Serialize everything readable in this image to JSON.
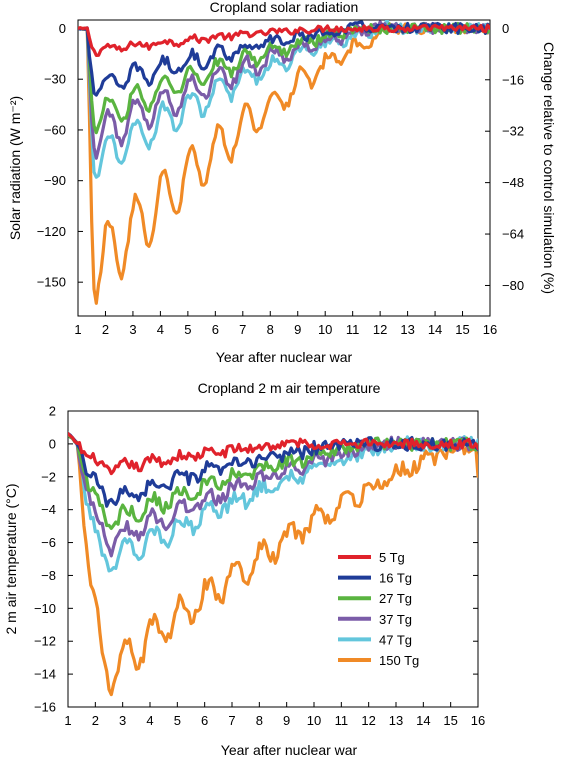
{
  "chart_data": [
    {
      "type": "line",
      "title": "Cropland solar radiation",
      "xlabel": "Year after nuclear war",
      "ylabel": "Solar radiation (W m⁻²)",
      "y2label": "Change relative to control simulation (%)",
      "xlim": [
        1,
        16
      ],
      "ylim": [
        -170,
        5
      ],
      "y2lim": [
        -89.5,
        2.6
      ],
      "xticks": [
        "1",
        "2",
        "3",
        "4",
        "5",
        "6",
        "7",
        "8",
        "9",
        "10",
        "11",
        "12",
        "13",
        "14",
        "15",
        "16"
      ],
      "yticks": [
        0,
        -30,
        -60,
        -90,
        -120,
        -150
      ],
      "yticklabels": [
        "0",
        "−30",
        "−60",
        "−90",
        "−120",
        "−150"
      ],
      "y2ticks": [
        0,
        -16,
        -32,
        -48,
        -64,
        -80
      ],
      "y2ticklabels": [
        "0",
        "−16",
        "−32",
        "−48",
        "−64",
        "−80"
      ],
      "grid": false,
      "series": [
        {
          "name": "5 Tg",
          "color": "#e0222b",
          "drop": -15,
          "amp": 4,
          "recover": 10.5,
          "noise": 2.0
        },
        {
          "name": "16 Tg",
          "color": "#1f3c98",
          "drop": -42,
          "amp": 14,
          "recover": 11.5,
          "noise": 3.0
        },
        {
          "name": "27 Tg",
          "color": "#5ab440",
          "drop": -62,
          "amp": 18,
          "recover": 11.8,
          "noise": 3.0
        },
        {
          "name": "37 Tg",
          "color": "#7b5ca8",
          "drop": -75,
          "amp": 22,
          "recover": 12.2,
          "noise": 3.0
        },
        {
          "name": "47 Tg",
          "color": "#63c6dc",
          "drop": -90,
          "amp": 24,
          "recover": 12.4,
          "noise": 3.0
        },
        {
          "name": "150 Tg",
          "color": "#f08a26",
          "drop": -163,
          "amp": 42,
          "recover": 12.8,
          "noise": 3.0
        }
      ]
    },
    {
      "type": "line",
      "title": "Cropland 2 m air temperature",
      "xlabel": "Year after nuclear war",
      "ylabel": "2 m air temperature (°C)",
      "xlim": [
        1,
        16
      ],
      "ylim": [
        -16,
        2
      ],
      "xticks": [
        "1",
        "2",
        "3",
        "4",
        "5",
        "6",
        "7",
        "8",
        "9",
        "10",
        "11",
        "12",
        "13",
        "14",
        "15",
        "16"
      ],
      "yticks": [
        2,
        0,
        -2,
        -4,
        -6,
        -8,
        -10,
        -12,
        -14,
        -16
      ],
      "yticklabels": [
        "2",
        "0",
        "−2",
        "−4",
        "−6",
        "−8",
        "−10",
        "−12",
        "−14",
        "−16"
      ],
      "grid": false,
      "legend_position": "lower-center",
      "series": [
        {
          "name": "5 Tg",
          "color": "#e0222b",
          "drop": -1.8,
          "amp": 0.5,
          "recover": 9.5,
          "noise": 0.3
        },
        {
          "name": "16 Tg",
          "color": "#1f3c98",
          "drop": -3.8,
          "amp": 0.8,
          "recover": 11.5,
          "noise": 0.4
        },
        {
          "name": "27 Tg",
          "color": "#5ab440",
          "drop": -5.2,
          "amp": 1.0,
          "recover": 12.5,
          "noise": 0.4
        },
        {
          "name": "37 Tg",
          "color": "#7b5ca8",
          "drop": -6.5,
          "amp": 1.1,
          "recover": 13.0,
          "noise": 0.4
        },
        {
          "name": "47 Tg",
          "color": "#63c6dc",
          "drop": -7.8,
          "amp": 1.2,
          "recover": 13.5,
          "noise": 0.45
        },
        {
          "name": "150 Tg",
          "color": "#f08a26",
          "drop": -15.0,
          "amp": 2.2,
          "recover": 16.0,
          "noise": 0.45
        }
      ]
    }
  ]
}
